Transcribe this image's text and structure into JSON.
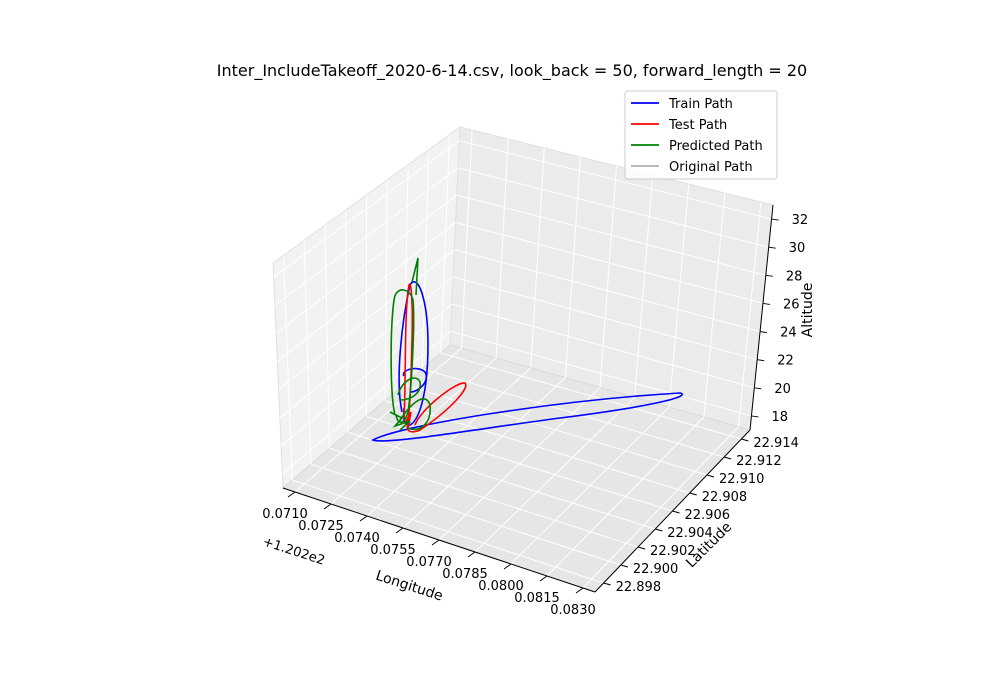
{
  "chart_data": {
    "type": "line",
    "projection": "3d",
    "title": "Inter_IncludeTakeoff_2020-6-14.csv, look_back = 50, forward_length = 20",
    "xlabel": "Longitude",
    "ylabel": "Latitude",
    "zlabel": "Altitude",
    "x_offset_label": "+1.202e2",
    "x_ticks": [
      "0.0710",
      "0.0725",
      "0.0740",
      "0.0755",
      "0.0770",
      "0.0785",
      "0.0800",
      "0.0815",
      "0.0830"
    ],
    "y_ticks": [
      "22.898",
      "22.900",
      "22.902",
      "22.904",
      "22.906",
      "22.908",
      "22.910",
      "22.912",
      "22.914"
    ],
    "z_ticks": [
      "18",
      "20",
      "22",
      "24",
      "26",
      "28",
      "30",
      "32"
    ],
    "xlim": [
      0.0705,
      0.0835
    ],
    "ylim": [
      22.897,
      22.915
    ],
    "zlim": [
      17.0,
      33.0
    ],
    "grid": true,
    "legend_position": "top-right",
    "series": [
      {
        "name": "Train Path",
        "color": "#0000ff"
      },
      {
        "name": "Test Path",
        "color": "#ff0000"
      },
      {
        "name": "Predicted Path",
        "color": "#008000"
      },
      {
        "name": "Original Path",
        "color": "#b0b0b0"
      }
    ]
  }
}
